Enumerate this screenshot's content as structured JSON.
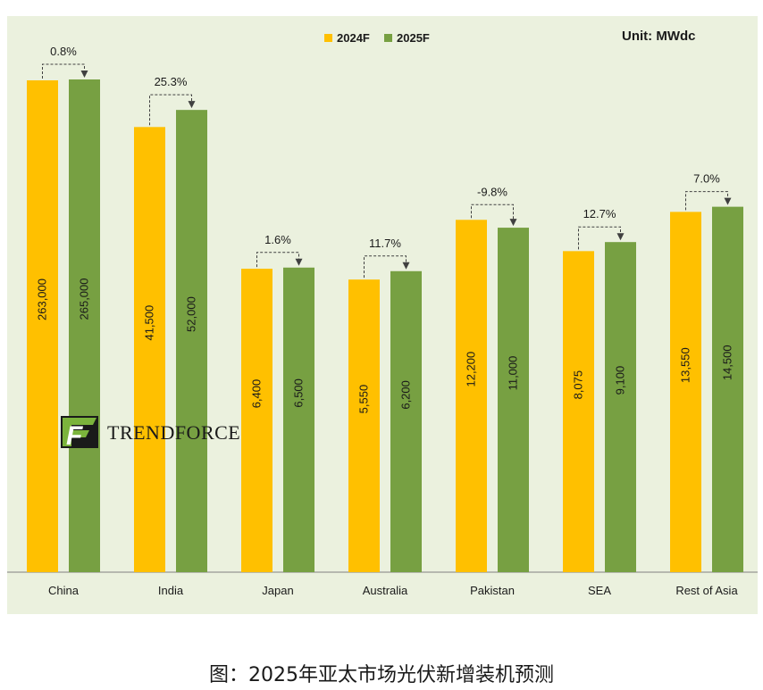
{
  "chart_data": {
    "type": "bar",
    "title": "",
    "unit": "Unit: MWdc",
    "categories": [
      "China",
      "India",
      "Japan",
      "Australia",
      "Pakistan",
      "SEA",
      "Rest of Asia"
    ],
    "series": [
      {
        "name": "2024F",
        "color": "#ffc000",
        "values": [
          263000,
          41500,
          6400,
          5550,
          12200,
          8075,
          13550
        ],
        "labels": [
          "263,000",
          "41,500",
          "6,400",
          "5,550",
          "12,200",
          "8,075",
          "13,550"
        ]
      },
      {
        "name": "2025F",
        "color": "#77a042",
        "values": [
          265000,
          52000,
          6500,
          6200,
          11000,
          9100,
          14500
        ],
        "labels": [
          "265,000",
          "52,000",
          "6,500",
          "6,200",
          "11,000",
          "9,100",
          "14,500"
        ]
      }
    ],
    "growth_labels": [
      "0.8%",
      "25.3%",
      "1.6%",
      "11.7%",
      "-9.8%",
      "12.7%",
      "7.0%"
    ],
    "legend_position": "top-center",
    "scale_note": "broken/compressed axis; bar heights not proportional"
  },
  "logo": {
    "mark": "F",
    "text": "TrendForce"
  },
  "caption": "图：2025年亚太市场光伏新增装机预测"
}
